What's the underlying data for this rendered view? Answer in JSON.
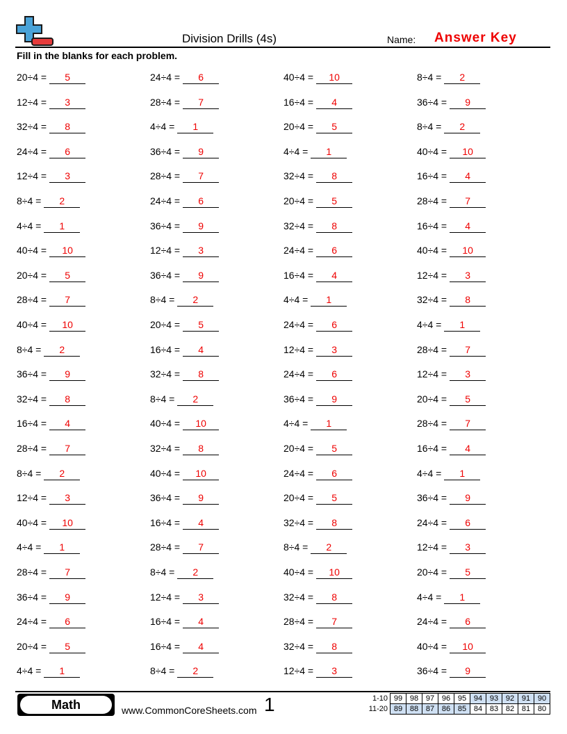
{
  "header": {
    "title": "Division Drills (4s)",
    "name_label": "Name:",
    "name_value": "Answer Key",
    "instructions": "Fill in the blanks for each problem."
  },
  "problems": [
    [
      [
        "20÷4 =",
        "5"
      ],
      [
        "24÷4 =",
        "6"
      ],
      [
        "40÷4 =",
        "10"
      ],
      [
        "8÷4 =",
        "2"
      ]
    ],
    [
      [
        "12÷4 =",
        "3"
      ],
      [
        "28÷4 =",
        "7"
      ],
      [
        "16÷4 =",
        "4"
      ],
      [
        "36÷4 =",
        "9"
      ]
    ],
    [
      [
        "32÷4 =",
        "8"
      ],
      [
        "4÷4 =",
        "1"
      ],
      [
        "20÷4 =",
        "5"
      ],
      [
        "8÷4 =",
        "2"
      ]
    ],
    [
      [
        "24÷4 =",
        "6"
      ],
      [
        "36÷4 =",
        "9"
      ],
      [
        "4÷4 =",
        "1"
      ],
      [
        "40÷4 =",
        "10"
      ]
    ],
    [
      [
        "12÷4 =",
        "3"
      ],
      [
        "28÷4 =",
        "7"
      ],
      [
        "32÷4 =",
        "8"
      ],
      [
        "16÷4 =",
        "4"
      ]
    ],
    [
      [
        "8÷4 =",
        "2"
      ],
      [
        "24÷4 =",
        "6"
      ],
      [
        "20÷4 =",
        "5"
      ],
      [
        "28÷4 =",
        "7"
      ]
    ],
    [
      [
        "4÷4 =",
        "1"
      ],
      [
        "36÷4 =",
        "9"
      ],
      [
        "32÷4 =",
        "8"
      ],
      [
        "16÷4 =",
        "4"
      ]
    ],
    [
      [
        "40÷4 =",
        "10"
      ],
      [
        "12÷4 =",
        "3"
      ],
      [
        "24÷4 =",
        "6"
      ],
      [
        "40÷4 =",
        "10"
      ]
    ],
    [
      [
        "20÷4 =",
        "5"
      ],
      [
        "36÷4 =",
        "9"
      ],
      [
        "16÷4 =",
        "4"
      ],
      [
        "12÷4 =",
        "3"
      ]
    ],
    [
      [
        "28÷4 =",
        "7"
      ],
      [
        "8÷4 =",
        "2"
      ],
      [
        "4÷4 =",
        "1"
      ],
      [
        "32÷4 =",
        "8"
      ]
    ],
    [
      [
        "40÷4 =",
        "10"
      ],
      [
        "20÷4 =",
        "5"
      ],
      [
        "24÷4 =",
        "6"
      ],
      [
        "4÷4 =",
        "1"
      ]
    ],
    [
      [
        "8÷4 =",
        "2"
      ],
      [
        "16÷4 =",
        "4"
      ],
      [
        "12÷4 =",
        "3"
      ],
      [
        "28÷4 =",
        "7"
      ]
    ],
    [
      [
        "36÷4 =",
        "9"
      ],
      [
        "32÷4 =",
        "8"
      ],
      [
        "24÷4 =",
        "6"
      ],
      [
        "12÷4 =",
        "3"
      ]
    ],
    [
      [
        "32÷4 =",
        "8"
      ],
      [
        "8÷4 =",
        "2"
      ],
      [
        "36÷4 =",
        "9"
      ],
      [
        "20÷4 =",
        "5"
      ]
    ],
    [
      [
        "16÷4 =",
        "4"
      ],
      [
        "40÷4 =",
        "10"
      ],
      [
        "4÷4 =",
        "1"
      ],
      [
        "28÷4 =",
        "7"
      ]
    ],
    [
      [
        "28÷4 =",
        "7"
      ],
      [
        "32÷4 =",
        "8"
      ],
      [
        "20÷4 =",
        "5"
      ],
      [
        "16÷4 =",
        "4"
      ]
    ],
    [
      [
        "8÷4 =",
        "2"
      ],
      [
        "40÷4 =",
        "10"
      ],
      [
        "24÷4 =",
        "6"
      ],
      [
        "4÷4 =",
        "1"
      ]
    ],
    [
      [
        "12÷4 =",
        "3"
      ],
      [
        "36÷4 =",
        "9"
      ],
      [
        "20÷4 =",
        "5"
      ],
      [
        "36÷4 =",
        "9"
      ]
    ],
    [
      [
        "40÷4 =",
        "10"
      ],
      [
        "16÷4 =",
        "4"
      ],
      [
        "32÷4 =",
        "8"
      ],
      [
        "24÷4 =",
        "6"
      ]
    ],
    [
      [
        "4÷4 =",
        "1"
      ],
      [
        "28÷4 =",
        "7"
      ],
      [
        "8÷4 =",
        "2"
      ],
      [
        "12÷4 =",
        "3"
      ]
    ],
    [
      [
        "28÷4 =",
        "7"
      ],
      [
        "8÷4 =",
        "2"
      ],
      [
        "40÷4 =",
        "10"
      ],
      [
        "20÷4 =",
        "5"
      ]
    ],
    [
      [
        "36÷4 =",
        "9"
      ],
      [
        "12÷4 =",
        "3"
      ],
      [
        "32÷4 =",
        "8"
      ],
      [
        "4÷4 =",
        "1"
      ]
    ],
    [
      [
        "24÷4 =",
        "6"
      ],
      [
        "16÷4 =",
        "4"
      ],
      [
        "28÷4 =",
        "7"
      ],
      [
        "24÷4 =",
        "6"
      ]
    ],
    [
      [
        "20÷4 =",
        "5"
      ],
      [
        "16÷4 =",
        "4"
      ],
      [
        "32÷4 =",
        "8"
      ],
      [
        "40÷4 =",
        "10"
      ]
    ],
    [
      [
        "4÷4 =",
        "1"
      ],
      [
        "8÷4 =",
        "2"
      ],
      [
        "12÷4 =",
        "3"
      ],
      [
        "36÷4 =",
        "9"
      ]
    ]
  ],
  "footer": {
    "subject": "Math",
    "website": "www.CommonCoreSheets.com",
    "page": "1",
    "score_table": [
      {
        "label": "1-10",
        "scores": [
          "99",
          "98",
          "97",
          "96",
          "95",
          "94",
          "93",
          "92",
          "91",
          "90"
        ]
      },
      {
        "label": "11-20",
        "scores": [
          "89",
          "88",
          "87",
          "86",
          "85",
          "84",
          "83",
          "82",
          "81",
          "80"
        ]
      }
    ]
  }
}
